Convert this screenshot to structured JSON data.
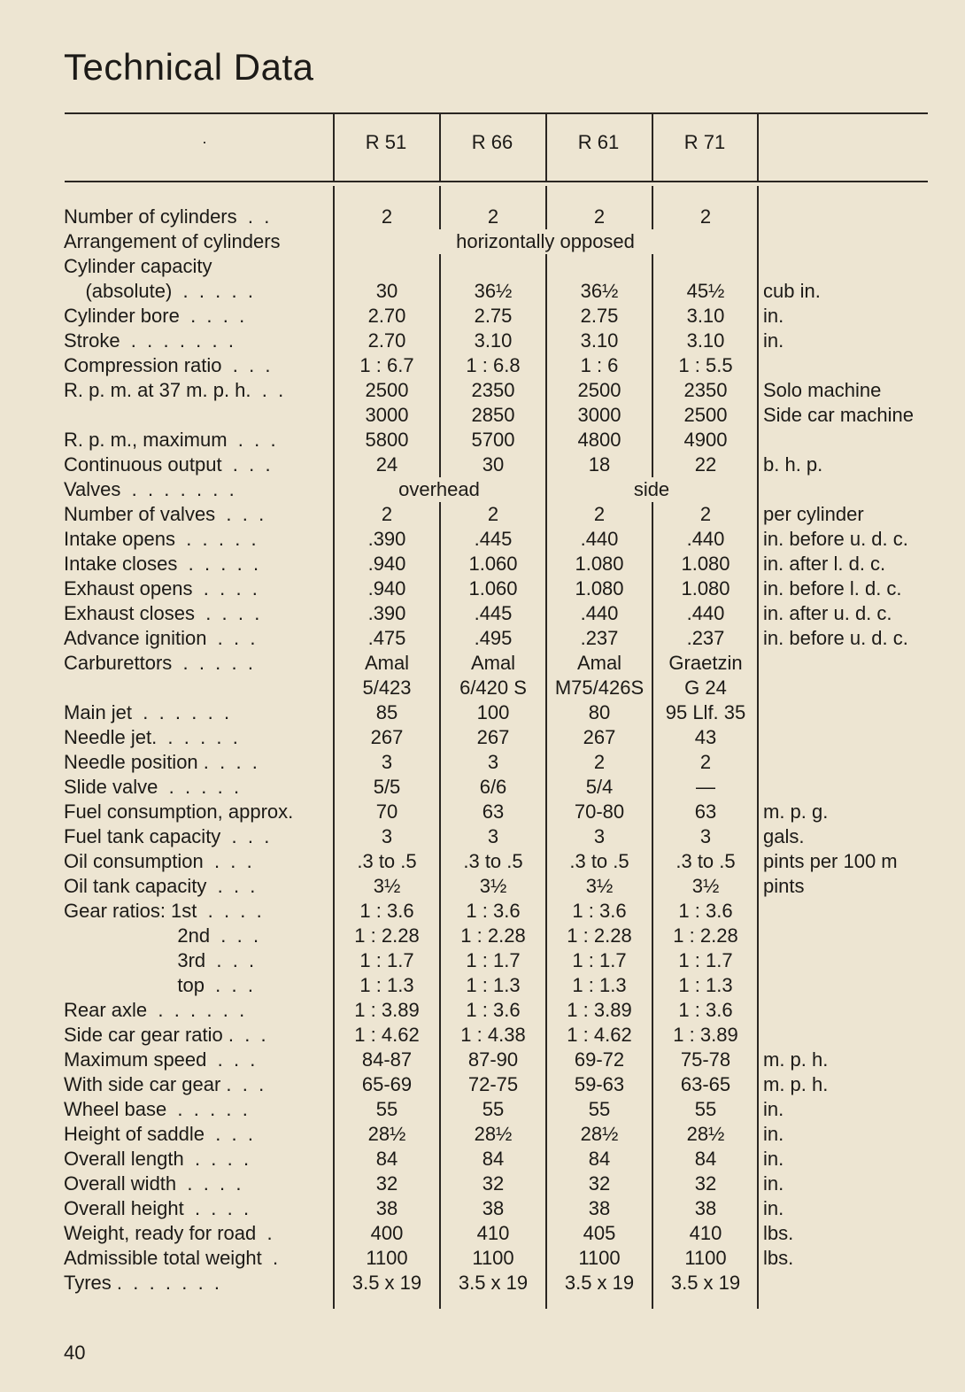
{
  "title": "Technical Data",
  "header": {
    "marker": "·",
    "models": [
      "R 51",
      "R 66",
      "R 61",
      "R 71"
    ]
  },
  "rows": [
    {
      "label": "Number of cylinders  .  .",
      "values": [
        "2",
        "2",
        "2",
        "2"
      ],
      "unit": ""
    },
    {
      "label": "Arrangement of cylinders",
      "span_all": "horizontally opposed",
      "unit": ""
    },
    {
      "label": "Cylinder capacity",
      "values": [
        "",
        "",
        "",
        ""
      ],
      "unit": ""
    },
    {
      "label": "    (absolute)  .  .  .  .  .",
      "values": [
        "30",
        "36½",
        "36½",
        "45½"
      ],
      "unit": "cub in."
    },
    {
      "label": "Cylinder bore  .  .  .  .",
      "values": [
        "2.70",
        "2.75",
        "2.75",
        "3.10"
      ],
      "unit": "in."
    },
    {
      "label": "Stroke  .  .  .  .  .  .  .",
      "values": [
        "2.70",
        "3.10",
        "3.10",
        "3.10"
      ],
      "unit": "in."
    },
    {
      "label": "Compression ratio  .  .  .",
      "values": [
        "1 : 6.7",
        "1 : 6.8",
        "1 : 6",
        "1 : 5.5"
      ],
      "unit": ""
    },
    {
      "label": "R. p. m. at 37 m. p. h.  .  .",
      "values": [
        "2500",
        "2350",
        "2500",
        "2350"
      ],
      "unit": "Solo machine"
    },
    {
      "label": "",
      "values": [
        "3000",
        "2850",
        "3000",
        "2500"
      ],
      "unit": "Side car machine"
    },
    {
      "label": "R. p. m., maximum  .  .  .",
      "values": [
        "5800",
        "5700",
        "4800",
        "4900"
      ],
      "unit": ""
    },
    {
      "label": "Continuous output  .  .  .",
      "values": [
        "24",
        "30",
        "18",
        "22"
      ],
      "unit": "b. h. p."
    },
    {
      "label": "Valves  .  .  .  .  .  .  .",
      "span_pair": [
        "overhead",
        "side"
      ],
      "unit": ""
    },
    {
      "label": "Number of valves  .  .  .",
      "values": [
        "2",
        "2",
        "2",
        "2"
      ],
      "unit": "per cylinder"
    },
    {
      "label": "Intake opens  .  .  .  .  .",
      "values": [
        ".390",
        ".445",
        ".440",
        ".440"
      ],
      "unit": "in. before u. d. c."
    },
    {
      "label": "Intake closes  .  .  .  .  .",
      "values": [
        ".940",
        "1.060",
        "1.080",
        "1.080"
      ],
      "unit": "in. after l. d. c."
    },
    {
      "label": "Exhaust opens  .  .  .  .",
      "values": [
        ".940",
        "1.060",
        "1.080",
        "1.080"
      ],
      "unit": "in. before l. d. c."
    },
    {
      "label": "Exhaust closes  .  .  .  .",
      "values": [
        ".390",
        ".445",
        ".440",
        ".440"
      ],
      "unit": "in. after u. d. c."
    },
    {
      "label": "Advance ignition  .  .  .",
      "values": [
        ".475",
        ".495",
        ".237",
        ".237"
      ],
      "unit": "in. before u. d. c."
    },
    {
      "label": "Carburettors  .  .  .  .  .",
      "values": [
        "Amal",
        "Amal",
        "Amal",
        "Graetzin"
      ],
      "unit": ""
    },
    {
      "label": "",
      "values": [
        "5/423",
        "6/420 S",
        "M75/426S",
        "G 24"
      ],
      "unit": ""
    },
    {
      "label": "Main jet  .  .  .  .  .  .",
      "values": [
        "85",
        "100",
        "80",
        "95 Llf. 35"
      ],
      "unit": ""
    },
    {
      "label": "Needle jet.  .  .  .  .  .",
      "values": [
        "267",
        "267",
        "267",
        "43"
      ],
      "unit": ""
    },
    {
      "label": "Needle position .  .  .  .",
      "values": [
        "3",
        "3",
        "2",
        "2"
      ],
      "unit": ""
    },
    {
      "label": "Slide valve  .  .  .  .  .",
      "values": [
        "5/5",
        "6/6",
        "5/4",
        "—"
      ],
      "unit": ""
    },
    {
      "label": "Fuel consumption, approx.",
      "values": [
        "70",
        "63",
        "70-80",
        "63"
      ],
      "unit": "m. p. g."
    },
    {
      "label": "Fuel tank capacity  .  .  .",
      "values": [
        "3",
        "3",
        "3",
        "3"
      ],
      "unit": "gals."
    },
    {
      "label": "Oil consumption  .  .  .",
      "values": [
        ".3 to .5",
        ".3 to .5",
        ".3 to .5",
        ".3 to .5"
      ],
      "unit": "pints per 100 m"
    },
    {
      "label": "Oil tank capacity  .  .  .",
      "values": [
        "3½",
        "3½",
        "3½",
        "3½"
      ],
      "unit": "pints"
    },
    {
      "label": "Gear ratios: 1st  .  .  .  .",
      "values": [
        "1 : 3.6",
        "1 : 3.6",
        "1 : 3.6",
        "1 : 3.6"
      ],
      "unit": ""
    },
    {
      "label": "                     2nd  .  .  .",
      "values": [
        "1 : 2.28",
        "1 : 2.28",
        "1 : 2.28",
        "1 : 2.28"
      ],
      "unit": ""
    },
    {
      "label": "                     3rd  .  .  .",
      "values": [
        "1 : 1.7",
        "1 : 1.7",
        "1 : 1.7",
        "1 : 1.7"
      ],
      "unit": ""
    },
    {
      "label": "                     top  .  .  .",
      "values": [
        "1 : 1.3",
        "1 : 1.3",
        "1 : 1.3",
        "1 : 1.3"
      ],
      "unit": ""
    },
    {
      "label": "Rear axle  .  .  .  .  .  .",
      "values": [
        "1 : 3.89",
        "1 : 3.6",
        "1 : 3.89",
        "1 : 3.6"
      ],
      "unit": ""
    },
    {
      "label": "Side car gear ratio .  .  .",
      "values": [
        "1 : 4.62",
        "1 : 4.38",
        "1 : 4.62",
        "1 : 3.89"
      ],
      "unit": ""
    },
    {
      "label": "Maximum speed  .  .  .",
      "values": [
        "84-87",
        "87-90",
        "69-72",
        "75-78"
      ],
      "unit": "m. p. h."
    },
    {
      "label": "With side car gear .  .  .",
      "values": [
        "65-69",
        "72-75",
        "59-63",
        "63-65"
      ],
      "unit": "m. p. h."
    },
    {
      "label": "Wheel base  .  .  .  .  .",
      "values": [
        "55",
        "55",
        "55",
        "55"
      ],
      "unit": "in."
    },
    {
      "label": "Height of saddle  .  .  .",
      "values": [
        "28½",
        "28½",
        "28½",
        "28½"
      ],
      "unit": "in."
    },
    {
      "label": "Overall length  .  .  .  .",
      "values": [
        "84",
        "84",
        "84",
        "84"
      ],
      "unit": "in."
    },
    {
      "label": "Overall width  .  .  .  .",
      "values": [
        "32",
        "32",
        "32",
        "32"
      ],
      "unit": "in."
    },
    {
      "label": "Overall height  .  .  .  .",
      "values": [
        "38",
        "38",
        "38",
        "38"
      ],
      "unit": "in."
    },
    {
      "label": "Weight, ready for road  .",
      "values": [
        "400",
        "410",
        "405",
        "410"
      ],
      "unit": "lbs."
    },
    {
      "label": "Admissible total weight  .",
      "values": [
        "1100",
        "1100",
        "1100",
        "1100"
      ],
      "unit": "lbs."
    },
    {
      "label": "Tyres .  .  .  .  .  .  .",
      "values": [
        "3.5 x 19",
        "3.5 x 19",
        "3.5 x 19",
        "3.5 x 19"
      ],
      "unit": ""
    }
  ],
  "page_number": "40"
}
